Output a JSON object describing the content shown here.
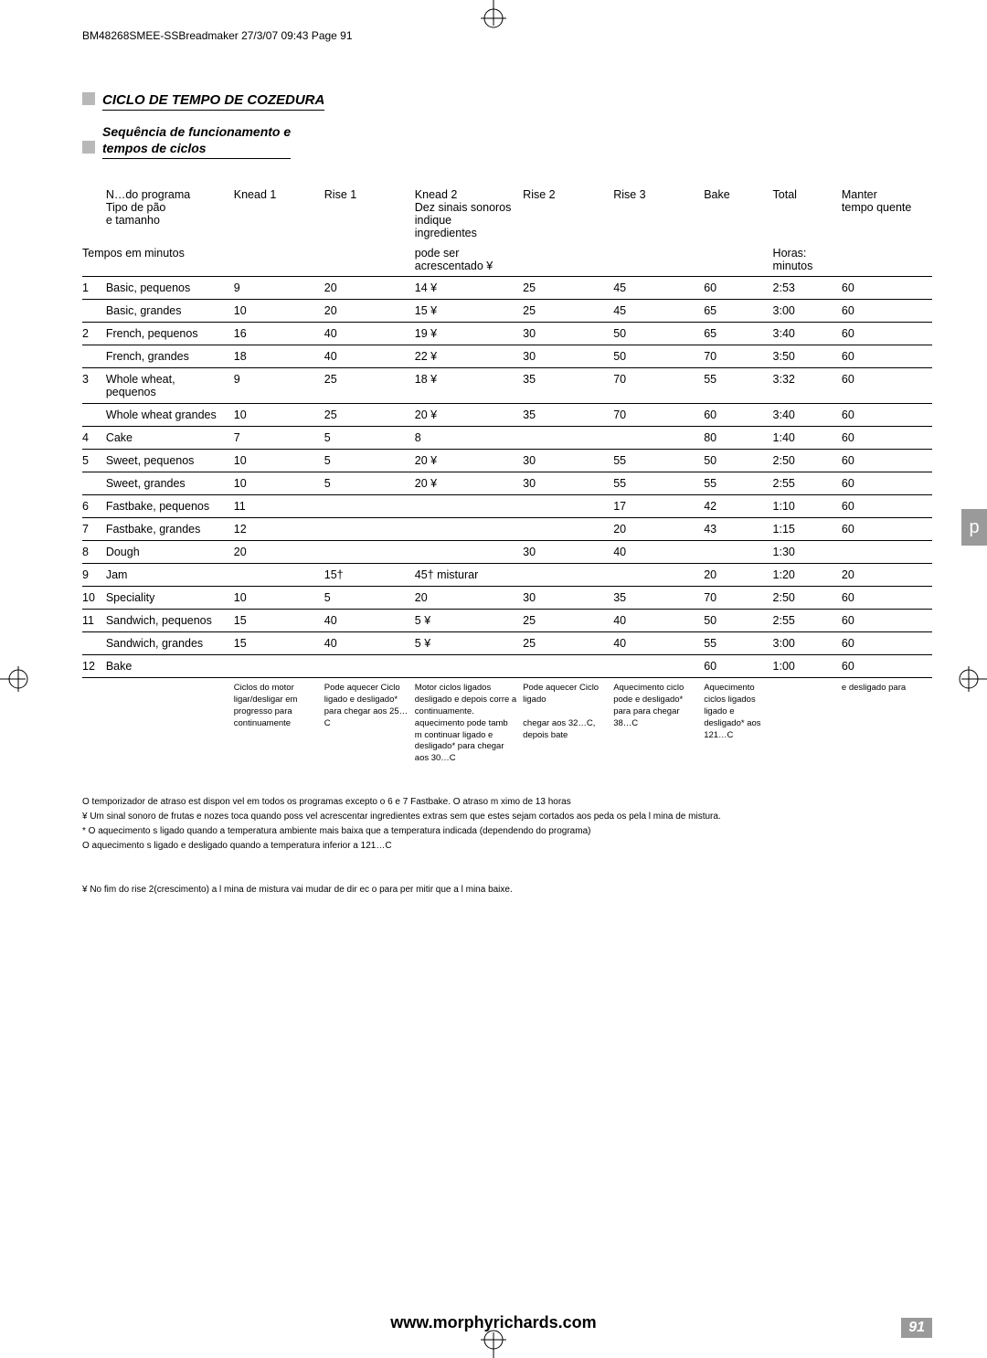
{
  "header_text": "BM48268SMEE-SSBreadmaker 27/3/07 09:43 Page 91",
  "section_title": "CICLO DE TEMPO DE COZEDURA",
  "subtitle": "Sequência de funcionamento e\ntempos de ciclos",
  "side_tab": "p",
  "footer_url": "www.morphyrichards.com",
  "page_number": "91",
  "table": {
    "head_row1": [
      "N…do programa",
      "Knead 1",
      "Rise 1",
      "Knead 2",
      "Rise 2",
      "Rise 3",
      "Bake",
      "Total",
      "Manter"
    ],
    "head_row1_extra_name": [
      "Tipo de pão",
      "e tamanho"
    ],
    "head_knead2_extra": [
      "Dez sinais sonoros",
      "indique",
      "ingredientes",
      "pode ser",
      "acrescentado ¥"
    ],
    "head_total_extra": [
      "Horas:",
      "minutos"
    ],
    "head_manter_extra": "tempo quente",
    "head_row2_left": "Tempos em minutos",
    "rows": [
      {
        "n": "1",
        "name": "Basic, pequenos",
        "k1": "9",
        "r1": "20",
        "k2": "14 ¥",
        "r2": "25",
        "r3": "45",
        "bake": "60",
        "total": "2:53",
        "keep": "60"
      },
      {
        "n": "",
        "name": "Basic, grandes",
        "k1": "10",
        "r1": "20",
        "k2": "15 ¥",
        "r2": "25",
        "r3": "45",
        "bake": "65",
        "total": "3:00",
        "keep": "60"
      },
      {
        "n": "2",
        "name": "French, pequenos",
        "k1": "16",
        "r1": "40",
        "k2": "19 ¥",
        "r2": "30",
        "r3": "50",
        "bake": "65",
        "total": "3:40",
        "keep": "60"
      },
      {
        "n": "",
        "name": "French, grandes",
        "k1": "18",
        "r1": "40",
        "k2": "22 ¥",
        "r2": "30",
        "r3": "50",
        "bake": "70",
        "total": "3:50",
        "keep": "60"
      },
      {
        "n": "3",
        "name": "Whole wheat, pequenos",
        "k1": "9",
        "r1": "25",
        "k2": "18 ¥",
        "r2": "35",
        "r3": "70",
        "bake": "55",
        "total": "3:32",
        "keep": "60"
      },
      {
        "n": "",
        "name": "Whole wheat grandes",
        "k1": "10",
        "r1": "25",
        "k2": "20 ¥",
        "r2": "35",
        "r3": "70",
        "bake": "60",
        "total": "3:40",
        "keep": "60"
      },
      {
        "n": "4",
        "name": "Cake",
        "k1": "7",
        "r1": "5",
        "k2": "8",
        "r2": "",
        "r3": "",
        "bake": "80",
        "total": "1:40",
        "keep": "60"
      },
      {
        "n": "5",
        "name": "Sweet, pequenos",
        "k1": "10",
        "r1": "5",
        "k2": "20 ¥",
        "r2": "30",
        "r3": "55",
        "bake": "50",
        "total": "2:50",
        "keep": "60"
      },
      {
        "n": "",
        "name": "Sweet, grandes",
        "k1": "10",
        "r1": "5",
        "k2": "20 ¥",
        "r2": "30",
        "r3": "55",
        "bake": "55",
        "total": "2:55",
        "keep": "60"
      },
      {
        "n": "6",
        "name": "Fastbake, pequenos",
        "k1": "11",
        "r1": "",
        "k2": "",
        "r2": "",
        "r3": "17",
        "bake": "42",
        "total": "1:10",
        "keep": "60"
      },
      {
        "n": "7",
        "name": "Fastbake, grandes",
        "k1": "12",
        "r1": "",
        "k2": "",
        "r2": "",
        "r3": "20",
        "bake": "43",
        "total": "1:15",
        "keep": "60"
      },
      {
        "n": "8",
        "name": "Dough",
        "k1": "20",
        "r1": "",
        "k2": "",
        "r2": "30",
        "r3": "40",
        "bake": "",
        "total": "1:30",
        "keep": ""
      },
      {
        "n": "9",
        "name": "Jam",
        "k1": "",
        "r1": "15†",
        "k2": "45† misturar",
        "r2": "",
        "r3": "",
        "bake": "20",
        "total": "1:20",
        "keep": "20"
      },
      {
        "n": "10",
        "name": "Speciality",
        "k1": "10",
        "r1": "5",
        "k2": "20",
        "r2": "30",
        "r3": "35",
        "bake": "70",
        "total": "2:50",
        "keep": "60"
      },
      {
        "n": "11",
        "name": "Sandwich, pequenos",
        "k1": "15",
        "r1": "40",
        "k2": "5 ¥",
        "r2": "25",
        "r3": "40",
        "bake": "50",
        "total": "2:55",
        "keep": "60"
      },
      {
        "n": "",
        "name": "Sandwich, grandes",
        "k1": "15",
        "r1": "40",
        "k2": "5 ¥",
        "r2": "25",
        "r3": "40",
        "bake": "55",
        "total": "3:00",
        "keep": "60"
      },
      {
        "n": "12",
        "name": "Bake",
        "k1": "",
        "r1": "",
        "k2": "",
        "r2": "",
        "r3": "",
        "bake": "60",
        "total": "1:00",
        "keep": "60"
      }
    ],
    "legend": [
      "Ciclos do motor ligar/desligar em progresso para continuamente",
      "Pode aquecer Ciclo ligado e desligado* para chegar aos 25…C",
      "Motor ciclos ligados desligado e depois corre a continuamente. aquecimento pode tamb m continuar ligado e desligado* para chegar aos 30…C",
      "Pode aquecer Ciclo ligado\n\nchegar aos 32…C, depois bate",
      "Aquecimento ciclo pode e desligado* para para chegar 38…C",
      "Aquecimento ciclos ligados ligado e desligado* aos 121…C",
      "e desligado para"
    ]
  },
  "notes": [
    "O temporizador de atraso est  dispon vel em todos os programas excepto o 6 e 7 Fastbake. O atraso m ximo  de 13 horas",
    "¥ Um sinal sonoro de frutas e nozes  toca quando  poss vel acrescentar ingredientes extras sem que estes sejam cortados aos peda os pela l mina de mistura.",
    "* O aquecimento s   ligado quando a temperatura ambiente   mais baixa que a temperatura indicada (dependendo do programa)",
    "  O aquecimento s   ligado e desligado quando a temperatura   inferior a 121…C",
    "",
    "¥ No fim do rise 2(crescimento) a l mina de mistura vai mudar de dir ec o para per mitir que a l mina baixe."
  ]
}
